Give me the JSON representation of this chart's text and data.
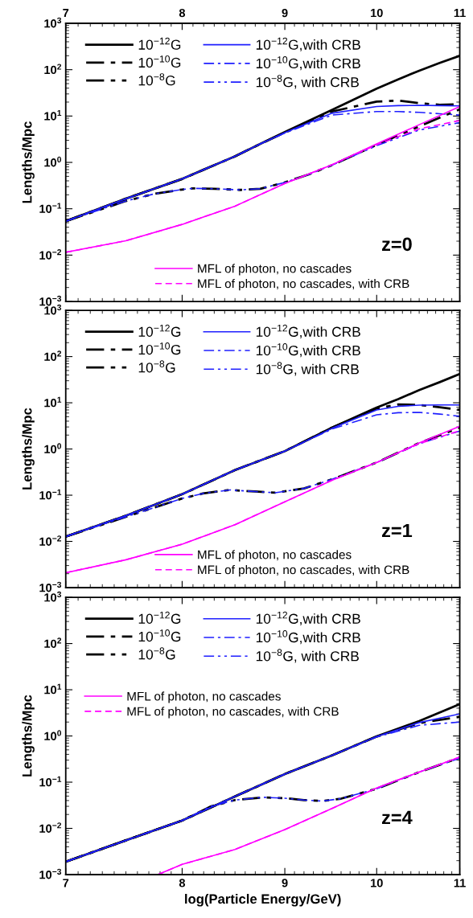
{
  "chart_data": [
    {
      "type": "line",
      "ylabel": "Lengths/Mpc",
      "log": "xy",
      "grid": false,
      "legend": "left",
      "xlim": [
        7,
        11
      ],
      "xticks": [
        7,
        8,
        9,
        10,
        11
      ],
      "ylim": [
        0.001,
        1000
      ],
      "yticks": [
        {
          "value": 0.001,
          "label": "10$^{−3}$"
        },
        {
          "value": 0.01,
          "label": "10$^{−2}$"
        },
        {
          "value": 0.1,
          "label": "10$^{−1}$"
        },
        {
          "value": 1,
          "label": "10$^{0}$"
        },
        {
          "value": 10,
          "label": "10$^{1}$"
        },
        {
          "value": 100,
          "label": "10$^{2}$"
        },
        {
          "value": 1000,
          "label": "10$^{3}$"
        }
      ],
      "annotations": [
        "z=0"
      ],
      "series": [
        {
          "name": "10$^{−12}$G",
          "color": "#000000",
          "line_style": "solid",
          "x": [
            7,
            7.5,
            8,
            8.25,
            8.5,
            8.75,
            9,
            9.5,
            10,
            10.25,
            10.5,
            10.75,
            11
          ],
          "values": [
            0.054,
            0.165,
            0.44,
            0.78,
            1.35,
            2.5,
            4.5,
            13.5,
            39,
            62,
            95,
            140,
            200
          ]
        },
        {
          "name": "10$^{−10}$G",
          "color": "#000000",
          "line_style": "dashdot",
          "x": [
            7,
            7.5,
            8,
            8.25,
            8.5,
            8.75,
            9,
            9.5,
            10,
            10.25,
            10.5,
            10.75,
            11
          ],
          "values": [
            0.054,
            0.165,
            0.44,
            0.78,
            1.35,
            2.5,
            4.4,
            12.5,
            20.5,
            21.5,
            19,
            17.5,
            18
          ]
        },
        {
          "name": "10$^{−8}$G",
          "color": "#000000",
          "line_style": "dashdotdot",
          "x": [
            7,
            7.5,
            7.75,
            8,
            8.1,
            8.3,
            8.55,
            8.75,
            9,
            9.25,
            9.5,
            10,
            10.5,
            11
          ],
          "values": [
            0.054,
            0.147,
            0.21,
            0.26,
            0.275,
            0.27,
            0.255,
            0.27,
            0.37,
            0.55,
            0.87,
            2.4,
            6,
            14
          ]
        },
        {
          "name": "10$^{−12}$G,with CRB",
          "color": "#1f1fff",
          "line_style": "solid",
          "x": [
            7,
            7.5,
            8,
            8.25,
            8.5,
            8.75,
            9,
            9.5,
            10,
            10.25,
            10.5,
            10.75,
            11
          ],
          "values": [
            0.054,
            0.165,
            0.44,
            0.78,
            1.35,
            2.5,
            4.4,
            11.5,
            16,
            16.8,
            17,
            16.8,
            16.5
          ]
        },
        {
          "name": "10$^{−10}$G,with CRB",
          "color": "#1f1fff",
          "line_style": "dashdot",
          "x": [
            7,
            7.5,
            8,
            8.25,
            8.5,
            8.75,
            9,
            9.5,
            10,
            10.25,
            10.5,
            10.75,
            11
          ],
          "values": [
            0.054,
            0.165,
            0.44,
            0.78,
            1.35,
            2.5,
            4.3,
            10.5,
            12.5,
            12.5,
            12,
            11.2,
            10.5
          ]
        },
        {
          "name": "10$^{−8}$G, with CRB",
          "color": "#1f1fff",
          "line_style": "dashdotdot",
          "x": [
            7,
            7.5,
            7.75,
            8,
            8.1,
            8.3,
            8.55,
            8.75,
            9,
            9.25,
            9.5,
            10,
            10.5,
            11
          ],
          "values": [
            0.054,
            0.147,
            0.21,
            0.26,
            0.275,
            0.27,
            0.255,
            0.27,
            0.37,
            0.55,
            0.87,
            2.3,
            5,
            7.2
          ]
        },
        {
          "name": "MFL of photon, no cascades",
          "color": "#ff00ff",
          "line_style": "solid",
          "x": [
            7,
            7.5,
            8,
            8.5,
            9,
            9.5,
            10,
            10.5,
            11
          ],
          "values": [
            0.0115,
            0.0204,
            0.046,
            0.114,
            0.35,
            0.89,
            2.5,
            6.5,
            16
          ]
        },
        {
          "name": "MFL of photon, no cascades, with CRB",
          "color": "#ff00ff",
          "line_style": "dashed",
          "x": [
            7,
            7.5,
            8,
            8.5,
            9,
            9.5,
            10,
            10.5,
            11
          ],
          "values": [
            0.0115,
            0.0204,
            0.046,
            0.114,
            0.35,
            0.89,
            2.4,
            5.3,
            8
          ]
        }
      ]
    },
    {
      "type": "line",
      "ylabel": "Lengths/Mpc",
      "log": "xy",
      "grid": false,
      "legend": "left",
      "tick_labels": "y",
      "xlim": [
        7,
        11
      ],
      "xticks": [
        7,
        8,
        9,
        10,
        11
      ],
      "ylim": [
        0.001,
        1000
      ],
      "yticks": [
        {
          "value": 0.001,
          "label": "10$^{−3}$"
        },
        {
          "value": 0.01,
          "label": "10$^{−2}$"
        },
        {
          "value": 0.1,
          "label": "10$^{−1}$"
        },
        {
          "value": 1,
          "label": "10$^{0}$"
        },
        {
          "value": 10,
          "label": "10$^{1}$"
        },
        {
          "value": 100,
          "label": "10$^{2}$"
        },
        {
          "value": 1000,
          "label": "10$^{3}$"
        }
      ],
      "annotations": [
        "z=1"
      ],
      "series": [
        {
          "name": "10$^{−12}$G",
          "color": "#000000",
          "line_style": "solid",
          "x": [
            7,
            7.5,
            8,
            8.5,
            9,
            9.5,
            10,
            10.25,
            10.5,
            10.75,
            11
          ],
          "values": [
            0.0127,
            0.036,
            0.105,
            0.35,
            0.9,
            2.9,
            7.9,
            12,
            18.8,
            28,
            42
          ]
        },
        {
          "name": "10$^{−10}$G",
          "color": "#000000",
          "line_style": "dashdot",
          "x": [
            7,
            7.5,
            8,
            8.5,
            9,
            9.5,
            10,
            10.25,
            10.5,
            10.75,
            11
          ],
          "values": [
            0.0127,
            0.036,
            0.105,
            0.35,
            0.9,
            2.9,
            7.5,
            9.2,
            9,
            8,
            7
          ]
        },
        {
          "name": "10$^{−8}$G",
          "color": "#000000",
          "line_style": "dashdotdot",
          "x": [
            7,
            7.5,
            8,
            8.2,
            8.45,
            8.7,
            8.9,
            9.2,
            9.5,
            10,
            10.5,
            11
          ],
          "values": [
            0.0127,
            0.034,
            0.085,
            0.11,
            0.13,
            0.12,
            0.113,
            0.14,
            0.22,
            0.51,
            1.35,
            2.9
          ]
        },
        {
          "name": "10$^{−12}$G,with CRB",
          "color": "#1f1fff",
          "line_style": "solid",
          "x": [
            7,
            7.5,
            8,
            8.5,
            9,
            9.5,
            10,
            10.25,
            10.5,
            10.75,
            11
          ],
          "values": [
            0.0127,
            0.036,
            0.105,
            0.35,
            0.9,
            2.8,
            7,
            8.4,
            8.9,
            9,
            9
          ]
        },
        {
          "name": "10$^{−10}$G,with CRB",
          "color": "#1f1fff",
          "line_style": "dashdot",
          "x": [
            7,
            7.5,
            8,
            8.5,
            9,
            9.5,
            10,
            10.25,
            10.5,
            10.75,
            11
          ],
          "values": [
            0.0127,
            0.036,
            0.105,
            0.35,
            0.9,
            2.7,
            5.5,
            6.1,
            6.2,
            5.7,
            5.1
          ]
        },
        {
          "name": "10$^{−8}$G, with CRB",
          "color": "#1f1fff",
          "line_style": "dashdotdot",
          "x": [
            7,
            7.5,
            8,
            8.2,
            8.45,
            8.7,
            8.9,
            9.2,
            9.5,
            10,
            10.5,
            11
          ],
          "values": [
            0.0127,
            0.034,
            0.085,
            0.11,
            0.13,
            0.12,
            0.113,
            0.14,
            0.22,
            0.51,
            1.3,
            2.45
          ]
        },
        {
          "name": "MFL of photon, no cascades",
          "color": "#ff00ff",
          "line_style": "solid",
          "x": [
            7,
            7.5,
            8,
            8.5,
            9,
            9.5,
            10,
            10.5,
            11
          ],
          "values": [
            0.0021,
            0.004,
            0.0087,
            0.023,
            0.072,
            0.21,
            0.51,
            1.35,
            3.1
          ]
        },
        {
          "name": "MFL of photon, no cascades, with CRB",
          "color": "#ff00ff",
          "line_style": "dashed",
          "x": [
            7,
            7.5,
            8,
            8.5,
            9,
            9.5,
            10,
            10.5,
            11
          ],
          "values": [
            0.0021,
            0.004,
            0.0087,
            0.023,
            0.072,
            0.21,
            0.51,
            1.3,
            2.5
          ]
        }
      ]
    },
    {
      "type": "line",
      "xlabel": "log(Particle Energy/GeV)",
      "ylabel": "Lengths/Mpc",
      "log": "xy",
      "grid": false,
      "legend": "top left",
      "xlim": [
        7,
        11
      ],
      "xticks": [
        7,
        8,
        9,
        10,
        11
      ],
      "ylim": [
        0.001,
        1000
      ],
      "yticks": [
        {
          "value": 0.001,
          "label": "10$^{−3}$"
        },
        {
          "value": 0.01,
          "label": "10$^{−2}$"
        },
        {
          "value": 0.1,
          "label": "10$^{−1}$"
        },
        {
          "value": 1,
          "label": "10$^{0}$"
        },
        {
          "value": 10,
          "label": "10$^{1}$"
        },
        {
          "value": 100,
          "label": "10$^{2}$"
        },
        {
          "value": 1000,
          "label": "10$^{3}$"
        }
      ],
      "annotations": [
        "z=4"
      ],
      "series": [
        {
          "name": "10$^{−12}$G",
          "color": "#000000",
          "line_style": "solid",
          "x": [
            7,
            7.5,
            8,
            8.5,
            9,
            9.5,
            10,
            10.5,
            11
          ],
          "values": [
            0.0019,
            0.0055,
            0.0148,
            0.049,
            0.15,
            0.38,
            0.98,
            2.1,
            4.9
          ]
        },
        {
          "name": "10$^{−10}$G",
          "color": "#000000",
          "line_style": "dashdot",
          "x": [
            7,
            7.5,
            8,
            8.5,
            9,
            9.5,
            10,
            10.5,
            11
          ],
          "values": [
            0.0019,
            0.0055,
            0.0148,
            0.049,
            0.15,
            0.38,
            0.97,
            1.9,
            2.6
          ]
        },
        {
          "name": "10$^{−8}$G",
          "color": "#000000",
          "line_style": "dashdotdot",
          "x": [
            7,
            7.5,
            8,
            8.27,
            8.5,
            8.78,
            9,
            9.2,
            9.4,
            9.6,
            10,
            10.5,
            11
          ],
          "values": [
            0.0019,
            0.0055,
            0.0148,
            0.03,
            0.041,
            0.047,
            0.045,
            0.041,
            0.039,
            0.044,
            0.072,
            0.165,
            0.34
          ]
        },
        {
          "name": "10$^{−12}$G,with CRB",
          "color": "#1f1fff",
          "line_style": "solid",
          "x": [
            7,
            7.5,
            8,
            8.5,
            9,
            9.5,
            10,
            10.5,
            11
          ],
          "values": [
            0.0019,
            0.0055,
            0.0148,
            0.049,
            0.15,
            0.38,
            0.97,
            1.95,
            3
          ]
        },
        {
          "name": "10$^{−10}$G,with CRB",
          "color": "#1f1fff",
          "line_style": "dashdot",
          "x": [
            7,
            7.5,
            8,
            8.5,
            9,
            9.5,
            10,
            10.5,
            11
          ],
          "values": [
            0.0019,
            0.0055,
            0.0148,
            0.049,
            0.15,
            0.38,
            0.95,
            1.7,
            2
          ]
        },
        {
          "name": "10$^{−8}$G, with CRB",
          "color": "#1f1fff",
          "line_style": "dashdotdot",
          "x": [
            7,
            7.5,
            8,
            8.27,
            8.5,
            8.78,
            9,
            9.2,
            9.4,
            9.6,
            10,
            10.5,
            11
          ],
          "values": [
            0.0019,
            0.0055,
            0.0148,
            0.03,
            0.041,
            0.047,
            0.045,
            0.041,
            0.039,
            0.044,
            0.072,
            0.165,
            0.33
          ]
        },
        {
          "name": "MFL of photon, no cascades",
          "color": "#ff00ff",
          "line_style": "solid",
          "x": [
            7.78,
            8,
            8.5,
            9,
            9.5,
            10,
            10.5,
            11
          ],
          "values": [
            0.001,
            0.00166,
            0.0035,
            0.0094,
            0.027,
            0.075,
            0.165,
            0.35
          ]
        },
        {
          "name": "MFL of photon, no cascades, with CRB",
          "color": "#ff00ff",
          "line_style": "dashed",
          "x": [
            7.78,
            8,
            8.5,
            9,
            9.5,
            10,
            10.5,
            11
          ],
          "values": [
            0.001,
            0.00166,
            0.0035,
            0.0094,
            0.027,
            0.075,
            0.165,
            0.35
          ]
        }
      ]
    }
  ]
}
